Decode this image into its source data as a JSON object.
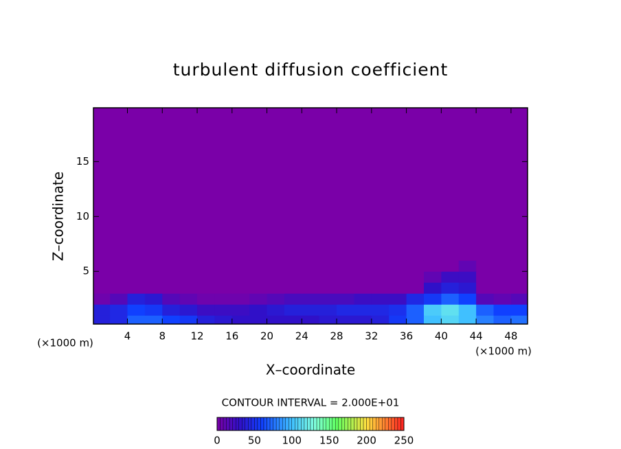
{
  "chart_data": {
    "type": "heatmap",
    "title": "turbulent diffusion coefficient",
    "x_label": "X–coordinate",
    "y_label": "Z–coordinate",
    "x_unit": "(×1000 m)",
    "x_unit_right": "(×1000 m)",
    "annotation": "CONTOUR INTERVAL = 2.000E+01",
    "xlim": [
      0.1,
      49.9
    ],
    "ylim": [
      0.2,
      19.9
    ],
    "xticks": [
      4,
      8,
      12,
      16,
      20,
      24,
      28,
      32,
      36,
      40,
      44,
      48
    ],
    "yticks": [
      5,
      10,
      15
    ],
    "x_bins": [
      0.1,
      2,
      4,
      6,
      8,
      10,
      12,
      14,
      16,
      18,
      20,
      22,
      24,
      26,
      28,
      30,
      32,
      34,
      36,
      38,
      40,
      42,
      44,
      46,
      48,
      49.9
    ],
    "y_bins": [
      0.2,
      1,
      2,
      3,
      4,
      5,
      6,
      19.9
    ],
    "values": [
      [
        40,
        45,
        70,
        70,
        60,
        55,
        40,
        35,
        30,
        30,
        30,
        30,
        30,
        35,
        35,
        35,
        40,
        55,
        70,
        100,
        110,
        100,
        80,
        70,
        75
      ],
      [
        40,
        45,
        60,
        55,
        40,
        35,
        25,
        25,
        25,
        30,
        35,
        40,
        40,
        40,
        45,
        45,
        45,
        50,
        70,
        105,
        115,
        100,
        70,
        60,
        60
      ],
      [
        5,
        15,
        40,
        35,
        15,
        10,
        5,
        5,
        5,
        10,
        15,
        20,
        20,
        20,
        20,
        25,
        25,
        25,
        45,
        55,
        70,
        60,
        15,
        10,
        15
      ],
      [
        0,
        0,
        0,
        0,
        0,
        0,
        0,
        0,
        0,
        0,
        0,
        0,
        0,
        0,
        0,
        0,
        0,
        0,
        0,
        30,
        40,
        35,
        0,
        0,
        0
      ],
      [
        0,
        0,
        0,
        0,
        0,
        0,
        0,
        0,
        0,
        0,
        0,
        0,
        0,
        0,
        0,
        0,
        0,
        0,
        0,
        10,
        25,
        25,
        0,
        0,
        0
      ],
      [
        0,
        0,
        0,
        0,
        0,
        0,
        0,
        0,
        0,
        0,
        0,
        0,
        0,
        0,
        0,
        0,
        0,
        0,
        0,
        0,
        0,
        10,
        0,
        0,
        0
      ],
      [
        0,
        0,
        0,
        0,
        0,
        0,
        0,
        0,
        0,
        0,
        0,
        0,
        0,
        0,
        0,
        0,
        0,
        0,
        0,
        0,
        0,
        0,
        0,
        0,
        0
      ]
    ],
    "colorscale": [
      [
        0,
        "#7a00a8"
      ],
      [
        30,
        "#3010c8"
      ],
      [
        60,
        "#1040ff"
      ],
      [
        100,
        "#40c0ff"
      ],
      [
        130,
        "#80ffe0"
      ],
      [
        160,
        "#60ff60"
      ],
      [
        200,
        "#ffe040"
      ],
      [
        250,
        "#ff2020"
      ]
    ],
    "colorbar_lim": [
      0,
      250
    ],
    "colorbar_ticks": [
      0,
      50,
      100,
      150,
      200,
      250
    ]
  }
}
